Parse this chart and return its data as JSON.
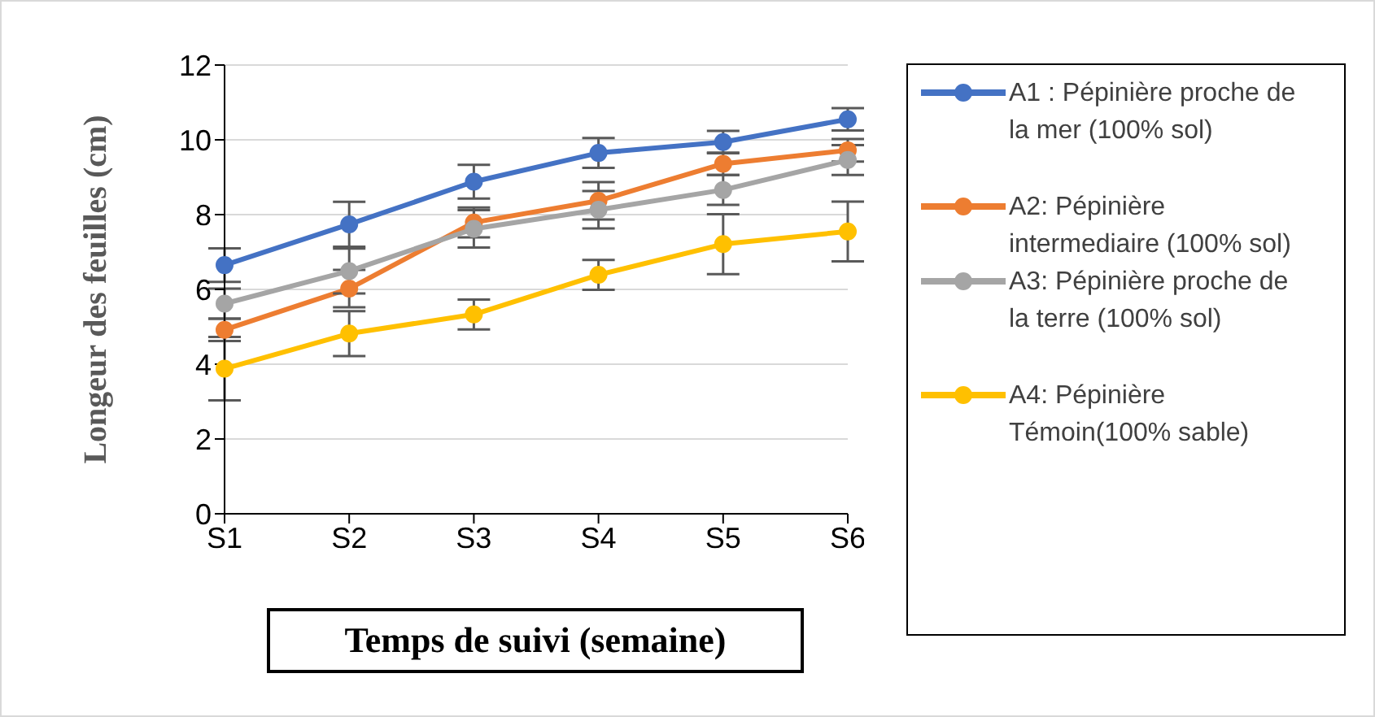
{
  "chart_data": {
    "type": "line",
    "xlabel": "Temps de suivi (semaine)",
    "ylabel": "Longeur des feuilles (cm)",
    "categories": [
      "S1",
      "S2",
      "S3",
      "S4",
      "S5",
      "S6"
    ],
    "series": [
      {
        "name": "A1 : Pépinière proche de la mer (100% sol)",
        "color": "#4472c4",
        "values": [
          6.65,
          7.74,
          8.88,
          9.65,
          9.94,
          10.55
        ],
        "errors": [
          0.45,
          0.6,
          0.45,
          0.4,
          0.3,
          0.3
        ]
      },
      {
        "name": "A2: Pépinière intermediaire (100% sol)",
        "color": "#ed7d31",
        "values": [
          4.92,
          6.02,
          7.79,
          8.37,
          9.36,
          9.72
        ],
        "errors": [
          0.3,
          0.5,
          0.4,
          0.5,
          0.3,
          0.3
        ]
      },
      {
        "name": "A3: Pépinière proche de la terre (100% sol)",
        "color": "#a5a5a5",
        "values": [
          5.62,
          6.49,
          7.62,
          8.13,
          8.66,
          9.46
        ],
        "errors": [
          0.4,
          0.6,
          0.5,
          0.5,
          0.4,
          0.4
        ]
      },
      {
        "name": "A4: Pépinière Témoin(100% sable)",
        "color": "#ffc000",
        "values": [
          3.88,
          4.82,
          5.33,
          6.39,
          7.21,
          7.55
        ],
        "errors": [
          0.85,
          0.6,
          0.4,
          0.4,
          0.8,
          0.8
        ]
      }
    ],
    "ylim": [
      0,
      12
    ],
    "yticks": [
      0,
      2,
      4,
      6,
      8,
      10,
      12
    ],
    "grid": "y",
    "legend": "right",
    "marker": "circle",
    "line_style": "solid"
  }
}
